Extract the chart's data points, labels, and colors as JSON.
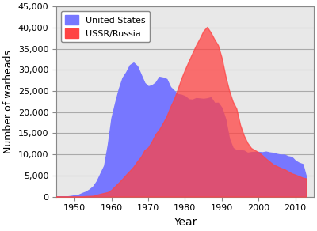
{
  "title": "",
  "xlabel": "Year",
  "ylabel": "Number of warheads",
  "xlim": [
    1945,
    2015
  ],
  "ylim": [
    0,
    45000
  ],
  "yticks": [
    0,
    5000,
    10000,
    15000,
    20000,
    25000,
    30000,
    35000,
    40000,
    45000
  ],
  "xticks": [
    1950,
    1960,
    1970,
    1980,
    1990,
    2000,
    2010
  ],
  "us_color": "#7777ff",
  "ussr_color": "#ff4444",
  "plot_bg_color": "#e8e8e8",
  "figure_bg_color": "#ffffff",
  "grid_color": "#aaaaaa",
  "spine_color": "#888888",
  "us_data": [
    [
      1945,
      2
    ],
    [
      1946,
      9
    ],
    [
      1947,
      13
    ],
    [
      1948,
      50
    ],
    [
      1949,
      170
    ],
    [
      1950,
      299
    ],
    [
      1951,
      438
    ],
    [
      1952,
      832
    ],
    [
      1953,
      1169
    ],
    [
      1954,
      1703
    ],
    [
      1955,
      2422
    ],
    [
      1956,
      3692
    ],
    [
      1957,
      5543
    ],
    [
      1958,
      7345
    ],
    [
      1959,
      12298
    ],
    [
      1960,
      18638
    ],
    [
      1961,
      22229
    ],
    [
      1962,
      25540
    ],
    [
      1963,
      28133
    ],
    [
      1964,
      29463
    ],
    [
      1965,
      31139
    ],
    [
      1966,
      31700
    ],
    [
      1967,
      30893
    ],
    [
      1968,
      28884
    ],
    [
      1969,
      26910
    ],
    [
      1970,
      26119
    ],
    [
      1971,
      26365
    ],
    [
      1972,
      27000
    ],
    [
      1973,
      28335
    ],
    [
      1974,
      28170
    ],
    [
      1975,
      27826
    ],
    [
      1976,
      25956
    ],
    [
      1977,
      25099
    ],
    [
      1978,
      24243
    ],
    [
      1979,
      24107
    ],
    [
      1980,
      23764
    ],
    [
      1981,
      23031
    ],
    [
      1982,
      22937
    ],
    [
      1983,
      23305
    ],
    [
      1984,
      23228
    ],
    [
      1985,
      23135
    ],
    [
      1986,
      23254
    ],
    [
      1987,
      23490
    ],
    [
      1988,
      22174
    ],
    [
      1989,
      22217
    ],
    [
      1990,
      21004
    ],
    [
      1991,
      18306
    ],
    [
      1992,
      13731
    ],
    [
      1993,
      11536
    ],
    [
      1994,
      10979
    ],
    [
      1995,
      10953
    ],
    [
      1996,
      10886
    ],
    [
      1997,
      10372
    ],
    [
      1998,
      10526
    ],
    [
      1999,
      10577
    ],
    [
      2000,
      10577
    ],
    [
      2001,
      10491
    ],
    [
      2002,
      10650
    ],
    [
      2003,
      10455
    ],
    [
      2004,
      10350
    ],
    [
      2005,
      10104
    ],
    [
      2006,
      9938
    ],
    [
      2007,
      9938
    ],
    [
      2008,
      9552
    ],
    [
      2009,
      9400
    ],
    [
      2010,
      8500
    ],
    [
      2011,
      8000
    ],
    [
      2012,
      7700
    ],
    [
      2013,
      4500
    ]
  ],
  "ussr_data": [
    [
      1945,
      0
    ],
    [
      1946,
      0
    ],
    [
      1947,
      0
    ],
    [
      1948,
      0
    ],
    [
      1949,
      1
    ],
    [
      1950,
      5
    ],
    [
      1951,
      25
    ],
    [
      1952,
      50
    ],
    [
      1953,
      120
    ],
    [
      1954,
      150
    ],
    [
      1955,
      200
    ],
    [
      1956,
      426
    ],
    [
      1957,
      660
    ],
    [
      1958,
      869
    ],
    [
      1959,
      1060
    ],
    [
      1960,
      1605
    ],
    [
      1961,
      2471
    ],
    [
      1962,
      3322
    ],
    [
      1963,
      4238
    ],
    [
      1964,
      5221
    ],
    [
      1965,
      6129
    ],
    [
      1966,
      7089
    ],
    [
      1967,
      8339
    ],
    [
      1968,
      9399
    ],
    [
      1969,
      11000
    ],
    [
      1970,
      11643
    ],
    [
      1971,
      13092
    ],
    [
      1972,
      14787
    ],
    [
      1973,
      15915
    ],
    [
      1974,
      17385
    ],
    [
      1975,
      19055
    ],
    [
      1976,
      21205
    ],
    [
      1977,
      23044
    ],
    [
      1978,
      25393
    ],
    [
      1979,
      27935
    ],
    [
      1980,
      30062
    ],
    [
      1981,
      32049
    ],
    [
      1982,
      33952
    ],
    [
      1983,
      35804
    ],
    [
      1984,
      37431
    ],
    [
      1985,
      39197
    ],
    [
      1986,
      40159
    ],
    [
      1987,
      38859
    ],
    [
      1988,
      37219
    ],
    [
      1989,
      35805
    ],
    [
      1990,
      32800
    ],
    [
      1991,
      28595
    ],
    [
      1992,
      25155
    ],
    [
      1993,
      22500
    ],
    [
      1994,
      20800
    ],
    [
      1995,
      17000
    ],
    [
      1996,
      14500
    ],
    [
      1997,
      12700
    ],
    [
      1998,
      11500
    ],
    [
      1999,
      11000
    ],
    [
      2000,
      10500
    ],
    [
      2001,
      9800
    ],
    [
      2002,
      9000
    ],
    [
      2003,
      8300
    ],
    [
      2004,
      7600
    ],
    [
      2005,
      7200
    ],
    [
      2006,
      6800
    ],
    [
      2007,
      6500
    ],
    [
      2008,
      6000
    ],
    [
      2009,
      5500
    ],
    [
      2010,
      5200
    ],
    [
      2011,
      4850
    ],
    [
      2012,
      4480
    ],
    [
      2013,
      4300
    ]
  ],
  "legend_labels": [
    "United States",
    "USSR/Russia"
  ],
  "figsize": [
    4.0,
    2.92
  ],
  "dpi": 100
}
